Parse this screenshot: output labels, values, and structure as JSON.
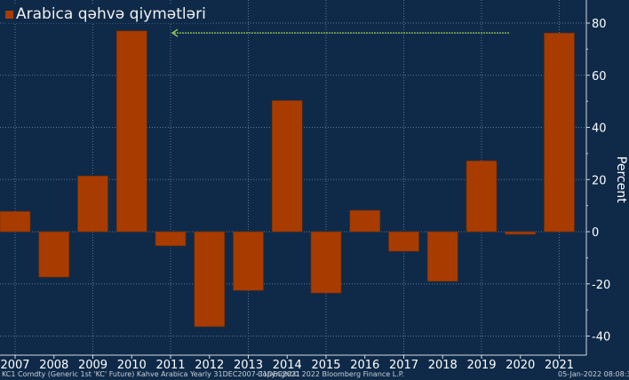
{
  "legend": {
    "label": "Arabica qəhvə qiymətləri"
  },
  "footer": {
    "source": "KC1 Comdty (Generic 1st 'KC' Future) Kahve Arabica  Yearly 31DEC2007-31DEC2021",
    "copyright": "Copyright© 2022 Bloomberg Finance L.P.",
    "timestamp": "05-Jan-2022 08:08:36"
  },
  "colors": {
    "background": "#0f2a48",
    "bar": "#a83c00",
    "grid": "#5d7896",
    "annotation": "#a8e05a"
  },
  "chart_data": {
    "type": "bar",
    "categories": [
      "2007",
      "2008",
      "2009",
      "2010",
      "2011",
      "2012",
      "2013",
      "2014",
      "2015",
      "2016",
      "2017",
      "2018",
      "2019",
      "2020",
      "2021"
    ],
    "series": [
      {
        "name": "Arabica qəhvə qiymətləri",
        "values": [
          7.8,
          -17.4,
          21.4,
          77,
          -5.4,
          -36.4,
          -22.5,
          50.3,
          -23.5,
          8.2,
          -7.5,
          -19,
          27.2,
          -1,
          76.2
        ]
      }
    ],
    "ylabel": "Percent",
    "ylim": [
      -48,
      90
    ],
    "yticks": [
      -40,
      -20,
      0,
      20,
      40,
      60,
      80
    ],
    "y_axis_side": "right",
    "grid": true,
    "legend_position": "top-left",
    "annotation": {
      "type": "arrow",
      "direction": "left",
      "from": "2020",
      "to": "2011",
      "value": 76.2
    }
  }
}
